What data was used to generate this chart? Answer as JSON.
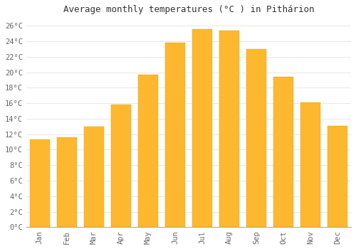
{
  "title": "Average monthly temperatures (°C ) in Pithárion",
  "months": [
    "Jan",
    "Feb",
    "Mar",
    "Apr",
    "May",
    "Jun",
    "Jul",
    "Aug",
    "Sep",
    "Oct",
    "Nov",
    "Dec"
  ],
  "values": [
    11.3,
    11.6,
    13.0,
    15.8,
    19.7,
    23.8,
    25.6,
    25.4,
    23.0,
    19.4,
    16.1,
    13.1
  ],
  "bar_color_top": "#FDB830",
  "bar_color_bottom": "#F5A800",
  "bar_edge_color": "#E8A000",
  "background_color": "#FFFFFF",
  "grid_color": "#DDDDDD",
  "text_color": "#666666",
  "ylim": [
    0,
    27
  ],
  "ytick_step": 2,
  "title_fontsize": 9,
  "tick_fontsize": 7.5,
  "bar_width": 0.75
}
